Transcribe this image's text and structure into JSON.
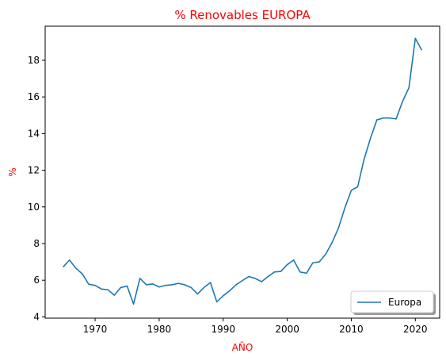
{
  "chart_data": {
    "type": "line",
    "title": "% Renovables EUROPA",
    "xlabel": "AÑO",
    "ylabel": "%",
    "label_color": "#ff0000",
    "xlim": [
      1962.2,
      2023.8
    ],
    "ylim": [
      3.93,
      19.86
    ],
    "xticks": [
      1970,
      1980,
      1990,
      2000,
      2010,
      2020
    ],
    "yticks": [
      4,
      6,
      8,
      10,
      12,
      14,
      16,
      18
    ],
    "grid": false,
    "legend": {
      "position": "lower-right",
      "shadow": true
    },
    "series": [
      {
        "name": "Europa",
        "color": "#1f77b4",
        "x": [
          1965,
          1966,
          1967,
          1968,
          1969,
          1970,
          1971,
          1972,
          1973,
          1974,
          1975,
          1976,
          1977,
          1978,
          1979,
          1980,
          1981,
          1982,
          1983,
          1984,
          1985,
          1986,
          1987,
          1988,
          1989,
          1990,
          1991,
          1992,
          1993,
          1994,
          1995,
          1996,
          1997,
          1998,
          1999,
          2000,
          2001,
          2002,
          2003,
          2004,
          2005,
          2006,
          2007,
          2008,
          2009,
          2010,
          2011,
          2012,
          2013,
          2014,
          2015,
          2016,
          2017,
          2018,
          2019,
          2020,
          2021
        ],
        "y": [
          6.72,
          7.1,
          6.65,
          6.35,
          5.78,
          5.72,
          5.52,
          5.48,
          5.18,
          5.6,
          5.68,
          4.7,
          6.1,
          5.75,
          5.8,
          5.63,
          5.72,
          5.75,
          5.83,
          5.75,
          5.6,
          5.25,
          5.6,
          5.88,
          4.82,
          5.15,
          5.42,
          5.75,
          5.98,
          6.2,
          6.1,
          5.92,
          6.2,
          6.45,
          6.48,
          6.85,
          7.1,
          6.45,
          6.38,
          6.95,
          7.0,
          7.42,
          8.05,
          8.85,
          9.95,
          10.9,
          11.1,
          12.6,
          13.75,
          14.75,
          14.85,
          14.85,
          14.8,
          15.75,
          16.5,
          19.2,
          18.55
        ]
      }
    ]
  }
}
